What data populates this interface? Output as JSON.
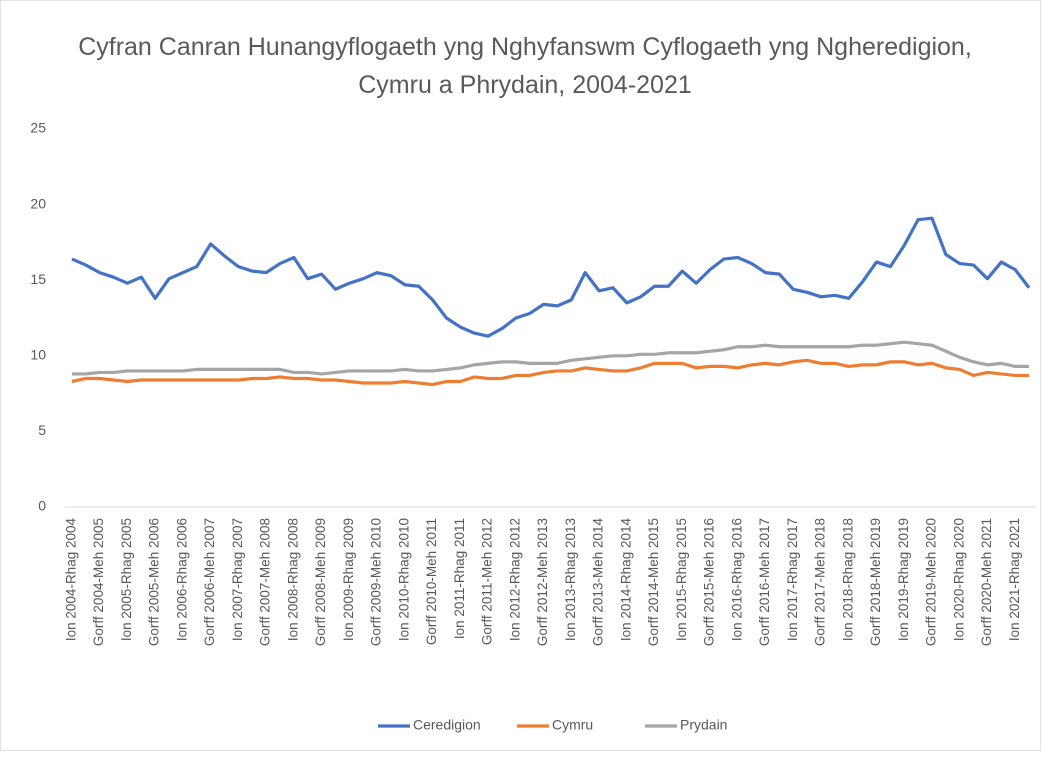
{
  "chart_data": {
    "type": "line",
    "title": "Cyfran Canran Hunangyflogaeth yng Nghyfanswm Cyflogaeth yng Ngheredigion, Cymru a Phrydain, 2004-2021",
    "categories": [
      "Ion 2004-Rhag 2004",
      null,
      "Gorff 2004-Meh 2005",
      null,
      "Ion 2005-Rhag 2005",
      null,
      "Gorff 2005-Meh 2006",
      null,
      "Ion 2006-Rhag 2006",
      null,
      "Gorff 2006-Meh 2007",
      null,
      "Ion 2007-Rhag 2007",
      null,
      "Gorff 2007-Meh 2008",
      null,
      "Ion 2008-Rhag 2008",
      null,
      "Gorff 2008-Meh 2009",
      null,
      "Ion 2009-Rhag 2009",
      null,
      "Gorff 2009-Meh 2010",
      null,
      "Ion 2010-Rhag 2010",
      null,
      "Gorff 2010-Meh 2011",
      null,
      "Ion 2011-Rhag 2011",
      null,
      "Gorff 2011-Meh 2012",
      null,
      "Ion 2012-Rhag 2012",
      null,
      "Gorff 2012-Meh 2013",
      null,
      "Ion 2013-Rhag 2013",
      null,
      "Gorff 2013-Meh 2014",
      null,
      "Ion 2014-Rhag 2014",
      null,
      "Gorff 2014-Meh 2015",
      null,
      "Ion 2015-Rhag 2015",
      null,
      "Gorff 2015-Meh 2016",
      null,
      "Ion 2016-Rhag 2016",
      null,
      "Gorff 2016-Meh 2017",
      null,
      "Ion 2017-Rhag 2017",
      null,
      "Gorff 2017-Meh 2018",
      null,
      "Ion 2018-Rhag 2018",
      null,
      "Gorff 2018-Meh 2019",
      null,
      "Ion 2019-Rhag 2019",
      null,
      "Gorff 2019-Meh 2020",
      null,
      "Ion 2020-Rhag 2020",
      null,
      "Gorff 2020-Meh 2021",
      null,
      "Ion 2021-Rhag 2021",
      null
    ],
    "series": [
      {
        "name": "Ceredigion",
        "color": "#4472c4",
        "values": [
          16.4,
          16.0,
          15.5,
          15.2,
          14.8,
          15.2,
          13.8,
          15.1,
          15.5,
          15.9,
          17.4,
          16.6,
          15.9,
          15.6,
          15.5,
          16.1,
          16.5,
          15.1,
          15.4,
          14.4,
          14.8,
          15.1,
          15.5,
          15.3,
          14.7,
          14.6,
          13.7,
          12.5,
          11.9,
          11.5,
          11.3,
          11.8,
          12.5,
          12.8,
          13.4,
          13.3,
          13.7,
          15.5,
          14.3,
          14.5,
          13.5,
          13.9,
          14.6,
          14.6,
          15.6,
          14.8,
          15.7,
          16.4,
          16.5,
          16.1,
          15.5,
          15.4,
          14.4,
          14.2,
          13.9,
          14.0,
          13.8,
          14.9,
          16.2,
          15.9,
          17.3,
          19.0,
          19.1,
          16.7,
          16.1,
          16.0,
          15.1,
          16.2,
          15.7,
          14.5
        ]
      },
      {
        "name": "Cymru",
        "color": "#ed7d31",
        "values": [
          8.3,
          8.5,
          8.5,
          8.4,
          8.3,
          8.4,
          8.4,
          8.4,
          8.4,
          8.4,
          8.4,
          8.4,
          8.4,
          8.5,
          8.5,
          8.6,
          8.5,
          8.5,
          8.4,
          8.4,
          8.3,
          8.2,
          8.2,
          8.2,
          8.3,
          8.2,
          8.1,
          8.3,
          8.3,
          8.6,
          8.5,
          8.5,
          8.7,
          8.7,
          8.9,
          9.0,
          9.0,
          9.2,
          9.1,
          9.0,
          9.0,
          9.2,
          9.5,
          9.5,
          9.5,
          9.2,
          9.3,
          9.3,
          9.2,
          9.4,
          9.5,
          9.4,
          9.6,
          9.7,
          9.5,
          9.5,
          9.3,
          9.4,
          9.4,
          9.6,
          9.6,
          9.4,
          9.5,
          9.2,
          9.1,
          8.7,
          8.9,
          8.8,
          8.7,
          8.7
        ]
      },
      {
        "name": "Prydain",
        "color": "#a5a5a5",
        "values": [
          8.8,
          8.8,
          8.9,
          8.9,
          9.0,
          9.0,
          9.0,
          9.0,
          9.0,
          9.1,
          9.1,
          9.1,
          9.1,
          9.1,
          9.1,
          9.1,
          8.9,
          8.9,
          8.8,
          8.9,
          9.0,
          9.0,
          9.0,
          9.0,
          9.1,
          9.0,
          9.0,
          9.1,
          9.2,
          9.4,
          9.5,
          9.6,
          9.6,
          9.5,
          9.5,
          9.5,
          9.7,
          9.8,
          9.9,
          10.0,
          10.0,
          10.1,
          10.1,
          10.2,
          10.2,
          10.2,
          10.3,
          10.4,
          10.6,
          10.6,
          10.7,
          10.6,
          10.6,
          10.6,
          10.6,
          10.6,
          10.6,
          10.7,
          10.7,
          10.8,
          10.9,
          10.8,
          10.7,
          10.3,
          9.9,
          9.6,
          9.4,
          9.5,
          9.3,
          9.3
        ]
      }
    ],
    "ylim": [
      0,
      25
    ],
    "yticks": [
      0,
      5,
      10,
      15,
      20,
      25
    ],
    "grid": false,
    "legend": "bottom"
  }
}
